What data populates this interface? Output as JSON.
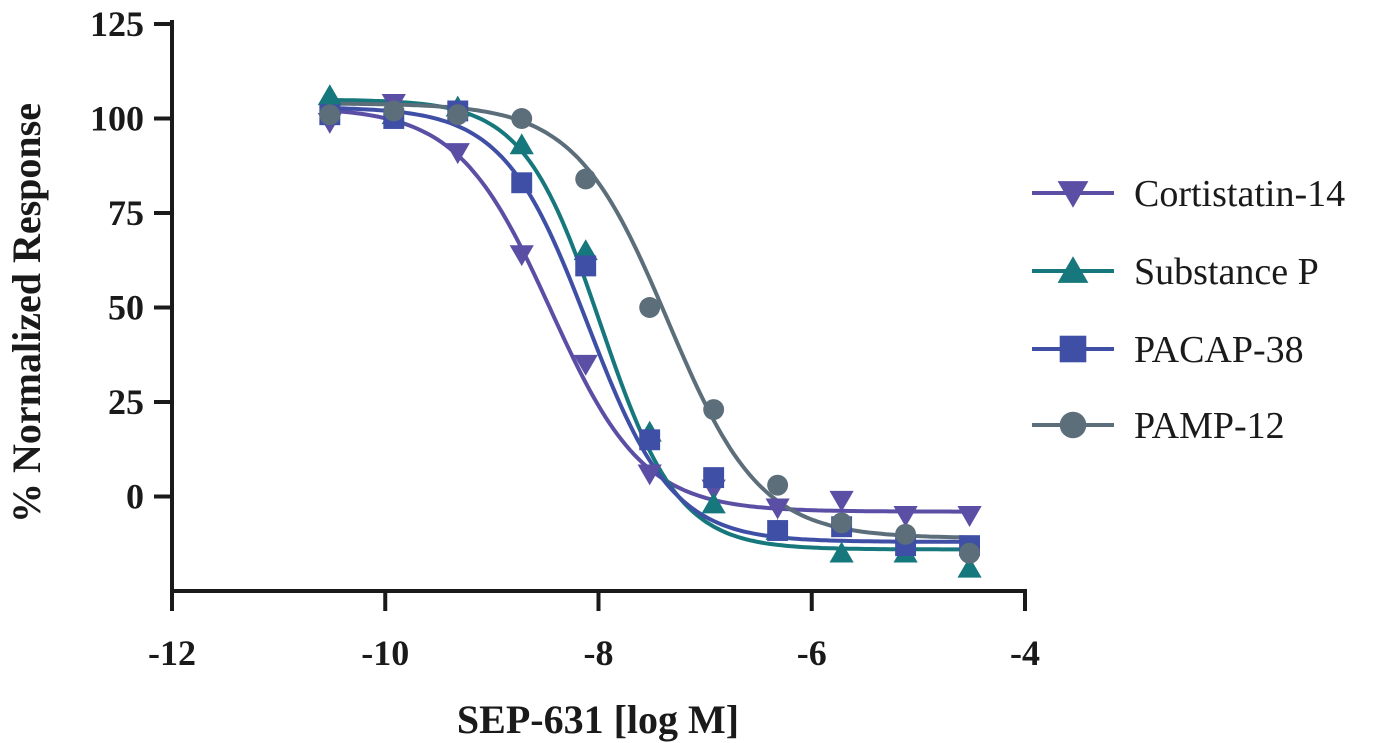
{
  "chart_data": {
    "type": "line",
    "title": "",
    "xlabel": "SEP-631 [log M]",
    "ylabel": "% Normalized Response",
    "xlim": [
      -12,
      -4
    ],
    "ylim": [
      -25,
      125
    ],
    "xticks": [
      -12,
      -10,
      -8,
      -6,
      -4
    ],
    "xtick_labels": [
      "-12",
      "-10",
      "-8",
      "-6",
      "-4"
    ],
    "yticks": [
      0,
      25,
      50,
      75,
      100,
      125
    ],
    "ytick_labels": [
      "0",
      "25",
      "50",
      "75",
      "100",
      "125"
    ],
    "legend_position": "right",
    "x": [
      -10.52,
      -9.92,
      -9.32,
      -8.72,
      -8.12,
      -7.52,
      -6.92,
      -6.32,
      -5.72,
      -5.12,
      -4.52
    ],
    "series": [
      {
        "name": "Cortistatin-14",
        "marker": "triangle-down",
        "color": "#5b4fa5",
        "values": [
          99,
          104,
          91,
          64,
          35,
          6,
          2,
          -3,
          -1,
          -5,
          -5
        ],
        "fit": {
          "top": 103,
          "bottom": -4,
          "logEC50": -8.45,
          "hill": 1.0
        }
      },
      {
        "name": "Substance P",
        "marker": "triangle-up",
        "color": "#16777c",
        "values": [
          106,
          101,
          103,
          93,
          65,
          17,
          -2,
          -9,
          -15,
          -15,
          -19
        ],
        "fit": {
          "top": 105,
          "bottom": -14,
          "logEC50": -7.98,
          "hill": 1.2
        }
      },
      {
        "name": "PACAP-38",
        "marker": "square",
        "color": "#3f4fa6",
        "values": [
          101,
          100,
          102,
          83,
          61,
          15,
          5,
          -9,
          -8,
          -13,
          -13
        ],
        "fit": {
          "top": 103,
          "bottom": -12,
          "logEC50": -8.1,
          "hill": 1.1
        }
      },
      {
        "name": "PAMP-12",
        "marker": "circle",
        "color": "#5b6e7a",
        "values": [
          101,
          102,
          101,
          100,
          84,
          50,
          23,
          3,
          -7,
          -10,
          -15
        ],
        "fit": {
          "top": 104,
          "bottom": -11,
          "logEC50": -7.35,
          "hill": 1.0
        }
      }
    ]
  }
}
